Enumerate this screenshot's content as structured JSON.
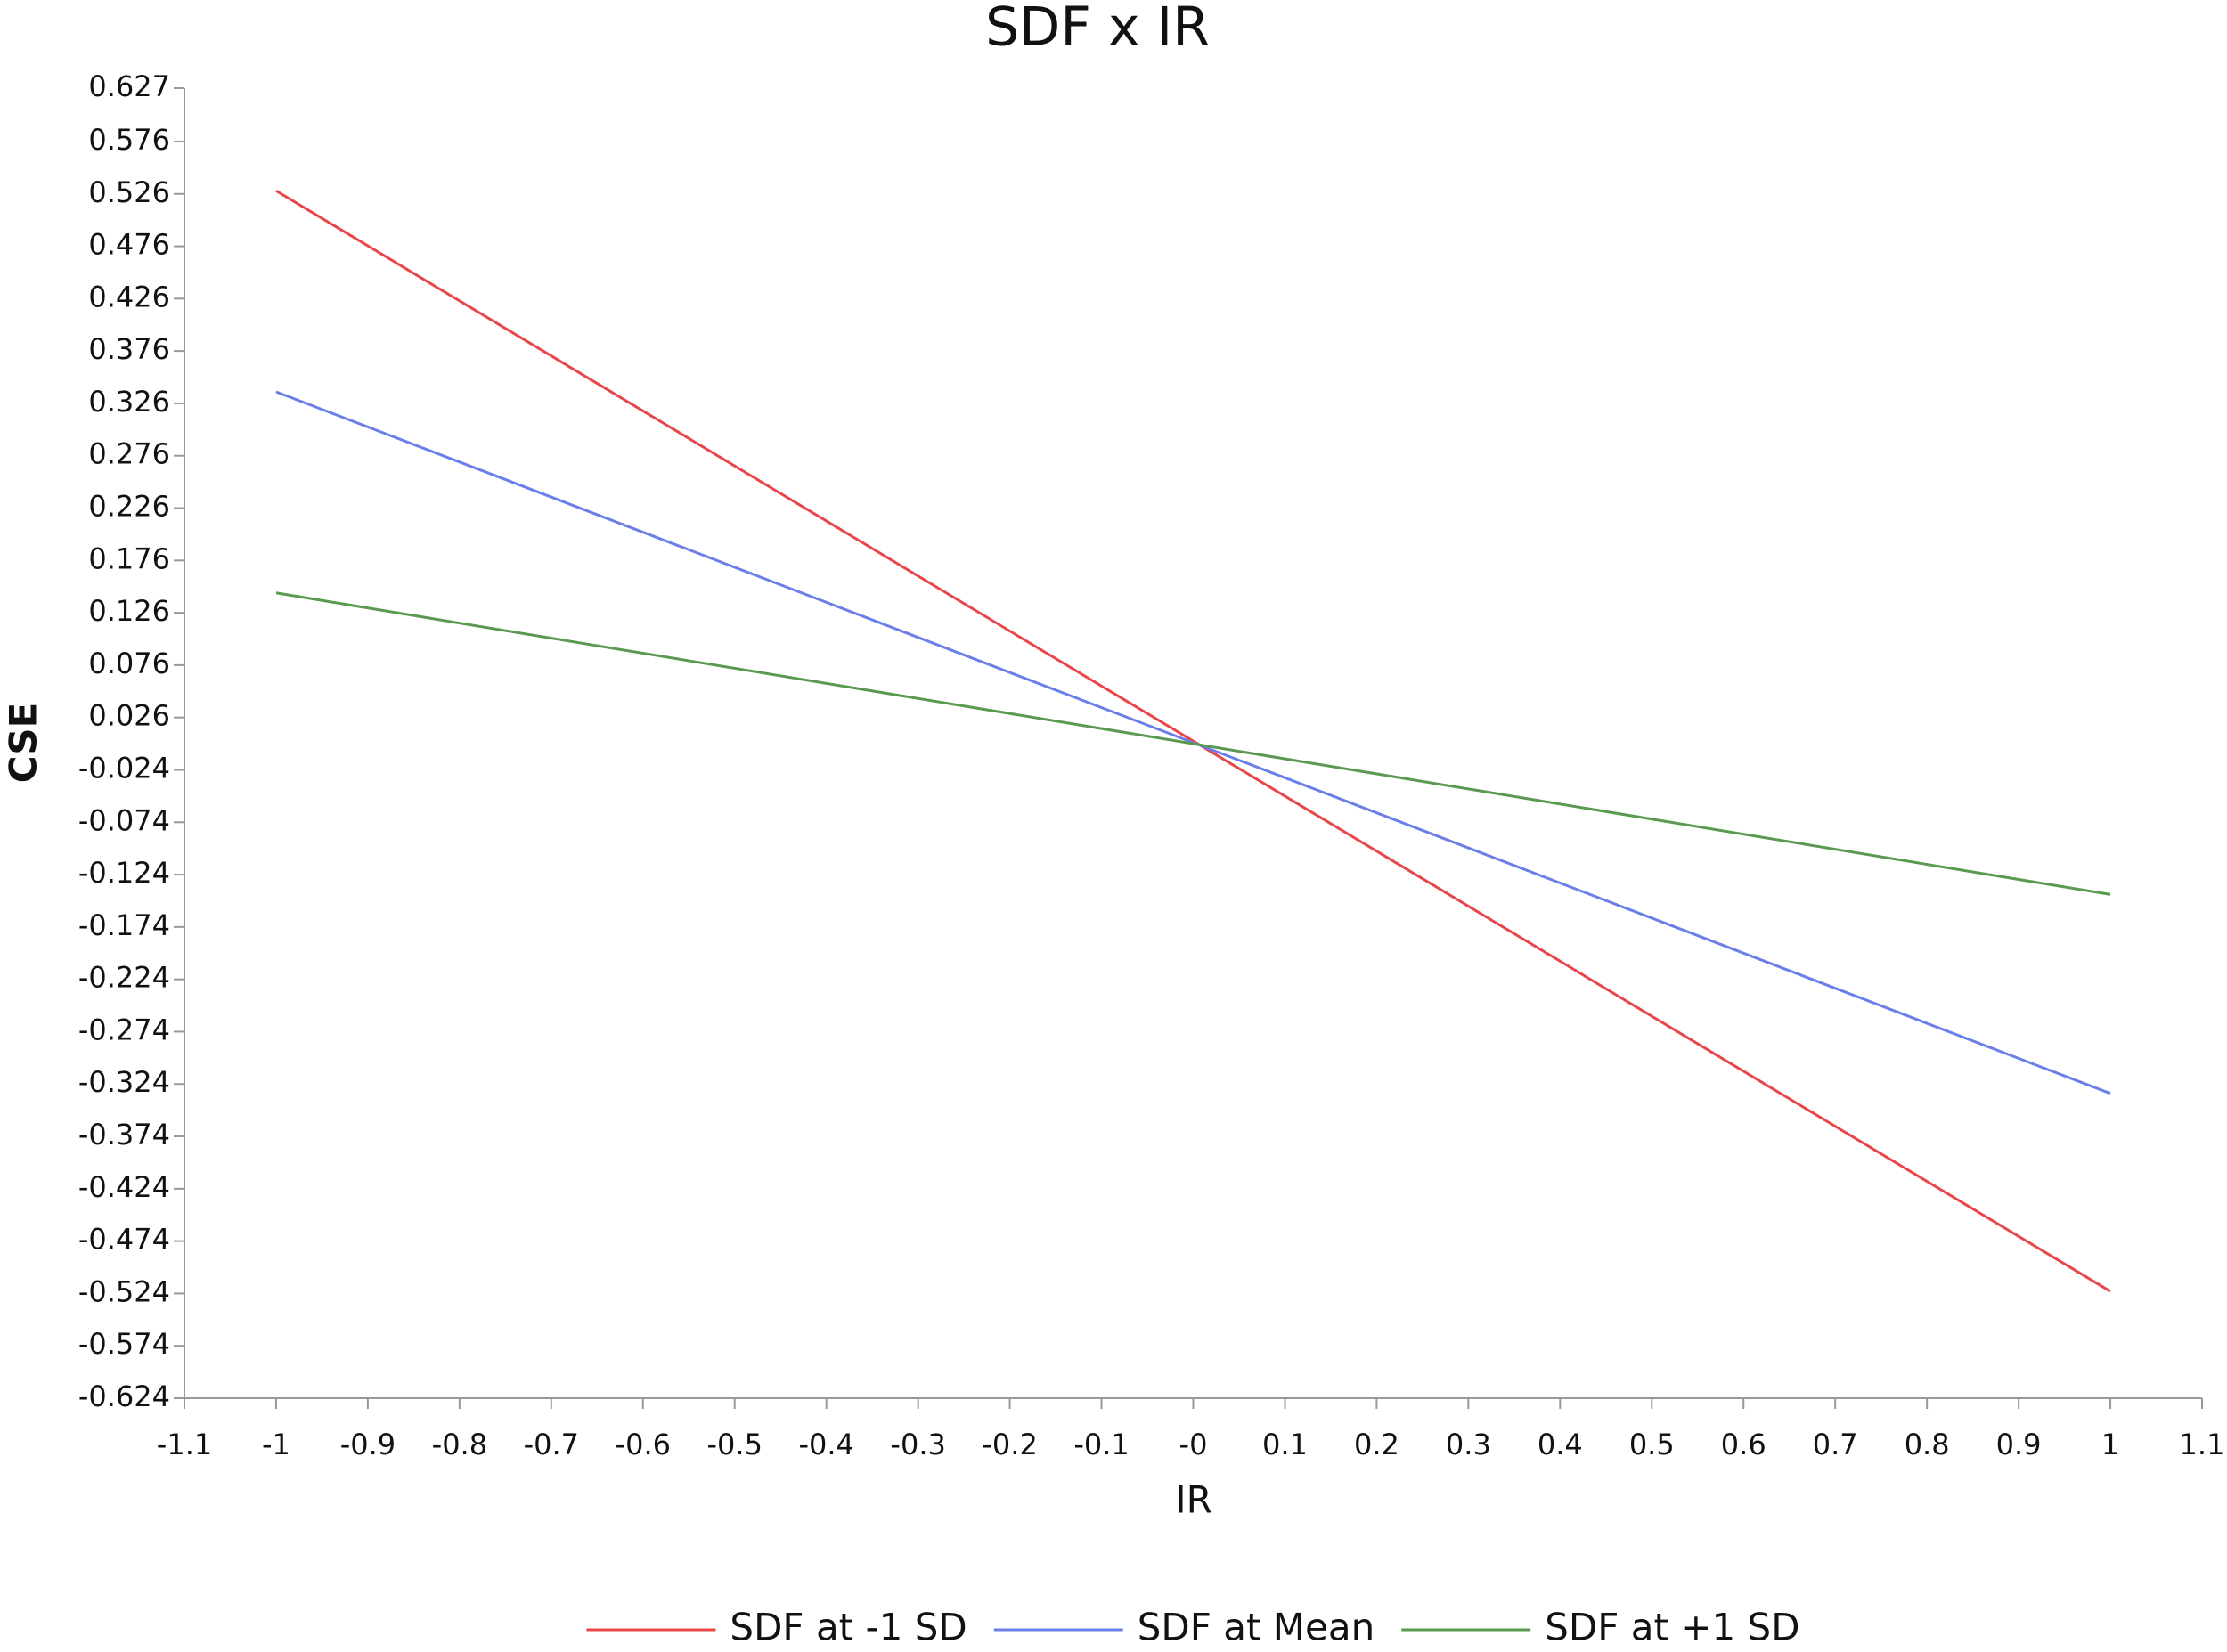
{
  "chart_data": {
    "type": "line",
    "title": "SDF x IR",
    "x_label": "IR",
    "y_label": "CSE",
    "xlim": [
      -1.1,
      1.1
    ],
    "xticks": [
      -1.1,
      -1,
      -0.9,
      -0.8,
      -0.7,
      -0.6,
      -0.5,
      -0.4,
      -0.3,
      -0.2,
      -0.1,
      {
        "value": 0,
        "label": "-0"
      },
      0.1,
      0.2,
      0.3,
      0.4,
      0.5,
      0.6,
      0.7,
      0.8,
      0.9,
      1,
      1.1
    ],
    "ylim": [
      -0.624,
      0.627
    ],
    "yticks": [
      0.627,
      0.576,
      0.526,
      0.476,
      0.426,
      0.376,
      0.326,
      0.276,
      0.226,
      0.176,
      0.126,
      0.076,
      0.026,
      -0.024,
      -0.074,
      -0.124,
      -0.174,
      -0.224,
      -0.274,
      -0.324,
      -0.374,
      -0.424,
      -0.474,
      -0.524,
      -0.574,
      -0.624
    ],
    "x": [
      -1,
      1
    ],
    "series": [
      {
        "name": "SDF at -1 SD",
        "color": "#e8474a",
        "values": [
          0.529,
          -0.522
        ]
      },
      {
        "name": "SDF at Mean",
        "color": "#6b7fe8",
        "values": [
          0.337,
          -0.333
        ]
      },
      {
        "name": "SDF at +1 SD",
        "color": "#5a9a50",
        "values": [
          0.145,
          -0.143
        ]
      }
    ],
    "grid": false,
    "legend": "bottom"
  }
}
